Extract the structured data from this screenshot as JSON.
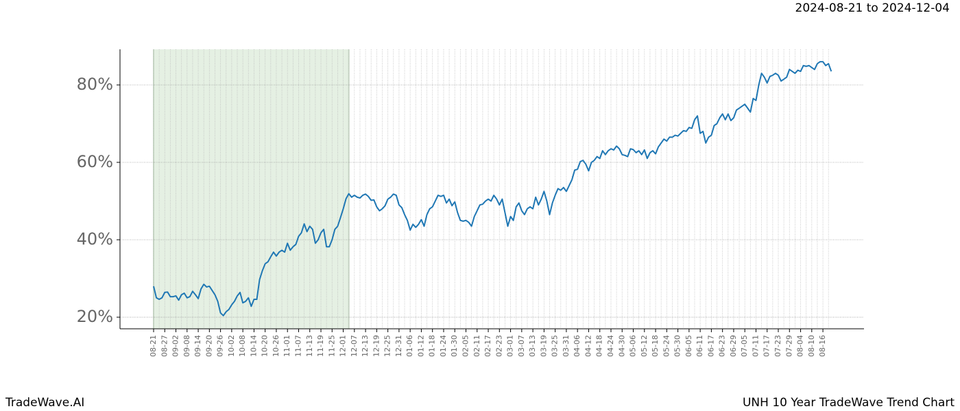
{
  "chart_data": {
    "type": "line",
    "title": "2024-08-21 to 2024-12-04",
    "footer_left": "TradeWave.AI",
    "footer_right": "UNH 10 Year TradeWave Trend Chart",
    "categories": [
      "08-21",
      null,
      null,
      null,
      "08-27",
      null,
      null,
      null,
      "09-02",
      null,
      null,
      null,
      "09-08",
      null,
      null,
      null,
      "09-14",
      null,
      null,
      null,
      "09-20",
      null,
      null,
      null,
      "09-26",
      null,
      null,
      null,
      "10-02",
      null,
      null,
      null,
      "10-08",
      null,
      null,
      null,
      "10-14",
      null,
      null,
      null,
      "10-20",
      null,
      null,
      null,
      "10-26",
      null,
      null,
      null,
      "11-01",
      null,
      null,
      null,
      "11-07",
      null,
      null,
      null,
      "11-13",
      null,
      null,
      null,
      "11-19",
      null,
      null,
      null,
      "11-25",
      null,
      null,
      null,
      "12-01",
      null,
      null,
      null,
      "12-07",
      null,
      null,
      null,
      "12-13",
      null,
      null,
      null,
      "12-19",
      null,
      null,
      null,
      "12-25",
      null,
      null,
      null,
      "12-31",
      null,
      null,
      null,
      "01-06",
      null,
      null,
      null,
      "01-12",
      null,
      null,
      null,
      "01-18",
      null,
      null,
      null,
      "01-24",
      null,
      null,
      null,
      "01-30",
      null,
      null,
      null,
      "02-05",
      null,
      null,
      null,
      "02-11",
      null,
      null,
      null,
      "02-17",
      null,
      null,
      null,
      "02-23",
      null,
      null,
      null,
      "03-01",
      null,
      null,
      null,
      "03-07",
      null,
      null,
      null,
      "03-13",
      null,
      null,
      null,
      "03-19",
      null,
      null,
      null,
      "03-25",
      null,
      null,
      null,
      "03-31",
      null,
      null,
      null,
      "04-06",
      null,
      null,
      null,
      "04-12",
      null,
      null,
      null,
      "04-18",
      null,
      null,
      null,
      "04-24",
      null,
      null,
      null,
      "04-30",
      null,
      null,
      null,
      "05-06",
      null,
      null,
      null,
      "05-12",
      null,
      null,
      null,
      "05-18",
      null,
      null,
      null,
      "05-24",
      null,
      null,
      null,
      "05-30",
      null,
      null,
      null,
      "06-05",
      null,
      null,
      null,
      "06-11",
      null,
      null,
      null,
      "06-17",
      null,
      null,
      null,
      "06-23",
      null,
      null,
      null,
      "06-29",
      null,
      null,
      null,
      "07-05",
      null,
      null,
      null,
      "07-11",
      null,
      null,
      null,
      "07-17",
      null,
      null,
      null,
      "07-23",
      null,
      null,
      null,
      "07-29",
      null,
      null,
      null,
      "08-04",
      null,
      null,
      null,
      "08-10",
      null,
      null,
      null,
      "08-16",
      null,
      null,
      null
    ],
    "series": [
      {
        "color": "#1f77b4",
        "values": [
          28.0,
          25,
          24.6,
          25,
          26.4,
          26.5,
          25.3,
          25.3,
          25.5,
          24.4,
          25.8,
          26.2,
          25,
          25.3,
          26.7,
          25.8,
          24.8,
          27.3,
          28.5,
          27.8,
          28,
          26.9,
          25.8,
          24.1,
          21.1,
          20.4,
          21.4,
          22,
          23.2,
          24.1,
          25.5,
          26.4,
          23.7,
          24.1,
          25,
          22.8,
          24.6,
          24.6,
          29.7,
          32,
          33.8,
          34.3,
          35.6,
          36.8,
          35.8,
          36.8,
          37.3,
          36.8,
          39.1,
          37.3,
          38.2,
          38.8,
          40.9,
          41.8,
          44.1,
          42.1,
          43.5,
          42.7,
          39.1,
          40,
          41.8,
          42.7,
          38.2,
          38.2,
          40,
          42.7,
          43.5,
          45.7,
          48,
          50.6,
          51.9,
          51,
          51.5,
          51,
          50.8,
          51.5,
          51.8,
          51.2,
          50.2,
          50.3,
          48.5,
          47.5,
          48,
          48.8,
          50.5,
          51,
          51.8,
          51.5,
          49,
          48.3,
          46.5,
          45,
          42.5,
          44,
          43.2,
          44,
          45.2,
          43.5,
          46.5,
          48,
          48.5,
          50,
          51.5,
          51.2,
          51.5,
          49.5,
          50.5,
          48.8,
          49.8,
          47,
          45,
          44.8,
          45,
          44.5,
          43.5,
          46,
          47.5,
          49,
          49.2,
          50,
          50.5,
          50,
          51.5,
          50.5,
          49,
          50.5,
          47,
          43.5,
          46,
          45,
          48.5,
          49.5,
          47.5,
          46.5,
          48,
          48.5,
          48,
          51,
          49,
          50.5,
          52.5,
          50,
          46.5,
          49.5,
          51.5,
          53.2,
          52.8,
          53.5,
          52.5,
          54,
          55.5,
          58,
          58.2,
          60.2,
          60.5,
          59.5,
          57.8,
          60,
          60.5,
          61.5,
          61,
          63,
          62,
          63,
          63.5,
          63.2,
          64.2,
          63.5,
          62,
          61.8,
          61.5,
          63.5,
          63.3,
          62.5,
          63,
          62,
          63.2,
          61,
          62.5,
          63,
          62.2,
          64,
          65,
          66,
          65.5,
          66.5,
          66.5,
          67,
          66.8,
          67.5,
          68.2,
          68,
          69,
          68.8,
          71,
          72,
          67.5,
          68,
          65,
          66.5,
          67,
          69.5,
          70,
          71.5,
          72.5,
          71,
          72.5,
          70.8,
          71.5,
          73.5,
          74,
          74.5,
          75,
          74,
          73,
          76.5,
          76,
          80,
          83,
          82,
          80.5,
          82.2,
          82.5,
          83,
          82.5,
          81,
          81.5,
          82,
          84,
          83.5,
          83,
          83.8,
          83.5,
          85,
          84.8,
          85,
          84.5,
          84,
          85.5,
          86,
          86,
          85,
          85.5,
          83.5
        ]
      }
    ],
    "ylim": [
      17,
      89.2
    ],
    "yticks": [
      {
        "value": 20,
        "label": "20%"
      },
      {
        "value": 40,
        "label": "40%"
      },
      {
        "value": 60,
        "label": "60%"
      },
      {
        "value": 80,
        "label": "80%"
      }
    ],
    "grid": true,
    "shaded_range": [
      0,
      70
    ],
    "shade_color": "#e5f0e3"
  }
}
